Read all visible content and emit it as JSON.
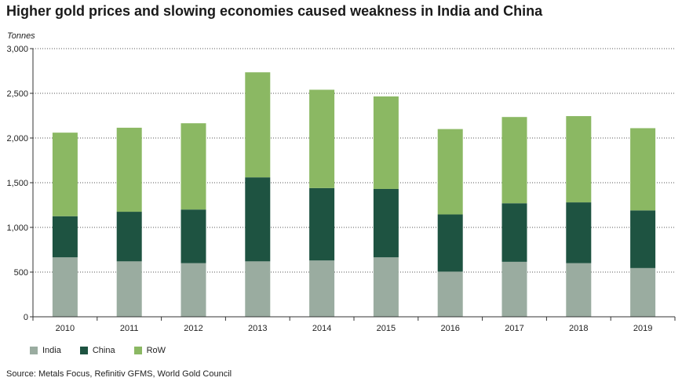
{
  "chart_data": {
    "type": "bar",
    "stacked": true,
    "title": "Higher gold prices and slowing economies caused weakness in India and China",
    "ylabel": "Tonnes",
    "xlabel": "",
    "ylim": [
      0,
      3000
    ],
    "yticks": [
      0,
      500,
      1000,
      1500,
      2000,
      2500,
      3000
    ],
    "ytick_labels": [
      "0",
      "500",
      "1,000",
      "1,500",
      "2,000",
      "2,500",
      "3,000"
    ],
    "grid": "horizontal dotted",
    "legend_position": "bottom-left",
    "categories": [
      "2010",
      "2011",
      "2012",
      "2013",
      "2014",
      "2015",
      "2016",
      "2017",
      "2018",
      "2019"
    ],
    "series": [
      {
        "name": "India",
        "color": "#9aaca0",
        "values": [
          665,
          620,
          600,
          620,
          630,
          665,
          505,
          615,
          600,
          545
        ]
      },
      {
        "name": "China",
        "color": "#1e5341",
        "values": [
          460,
          555,
          600,
          940,
          810,
          765,
          640,
          655,
          680,
          645
        ]
      },
      {
        "name": "RoW",
        "color": "#8bb863",
        "values": [
          935,
          940,
          965,
          1175,
          1100,
          1035,
          955,
          965,
          965,
          920
        ]
      }
    ],
    "source": "Source: Metals Focus, Refinitiv GFMS, World Gold Council"
  }
}
